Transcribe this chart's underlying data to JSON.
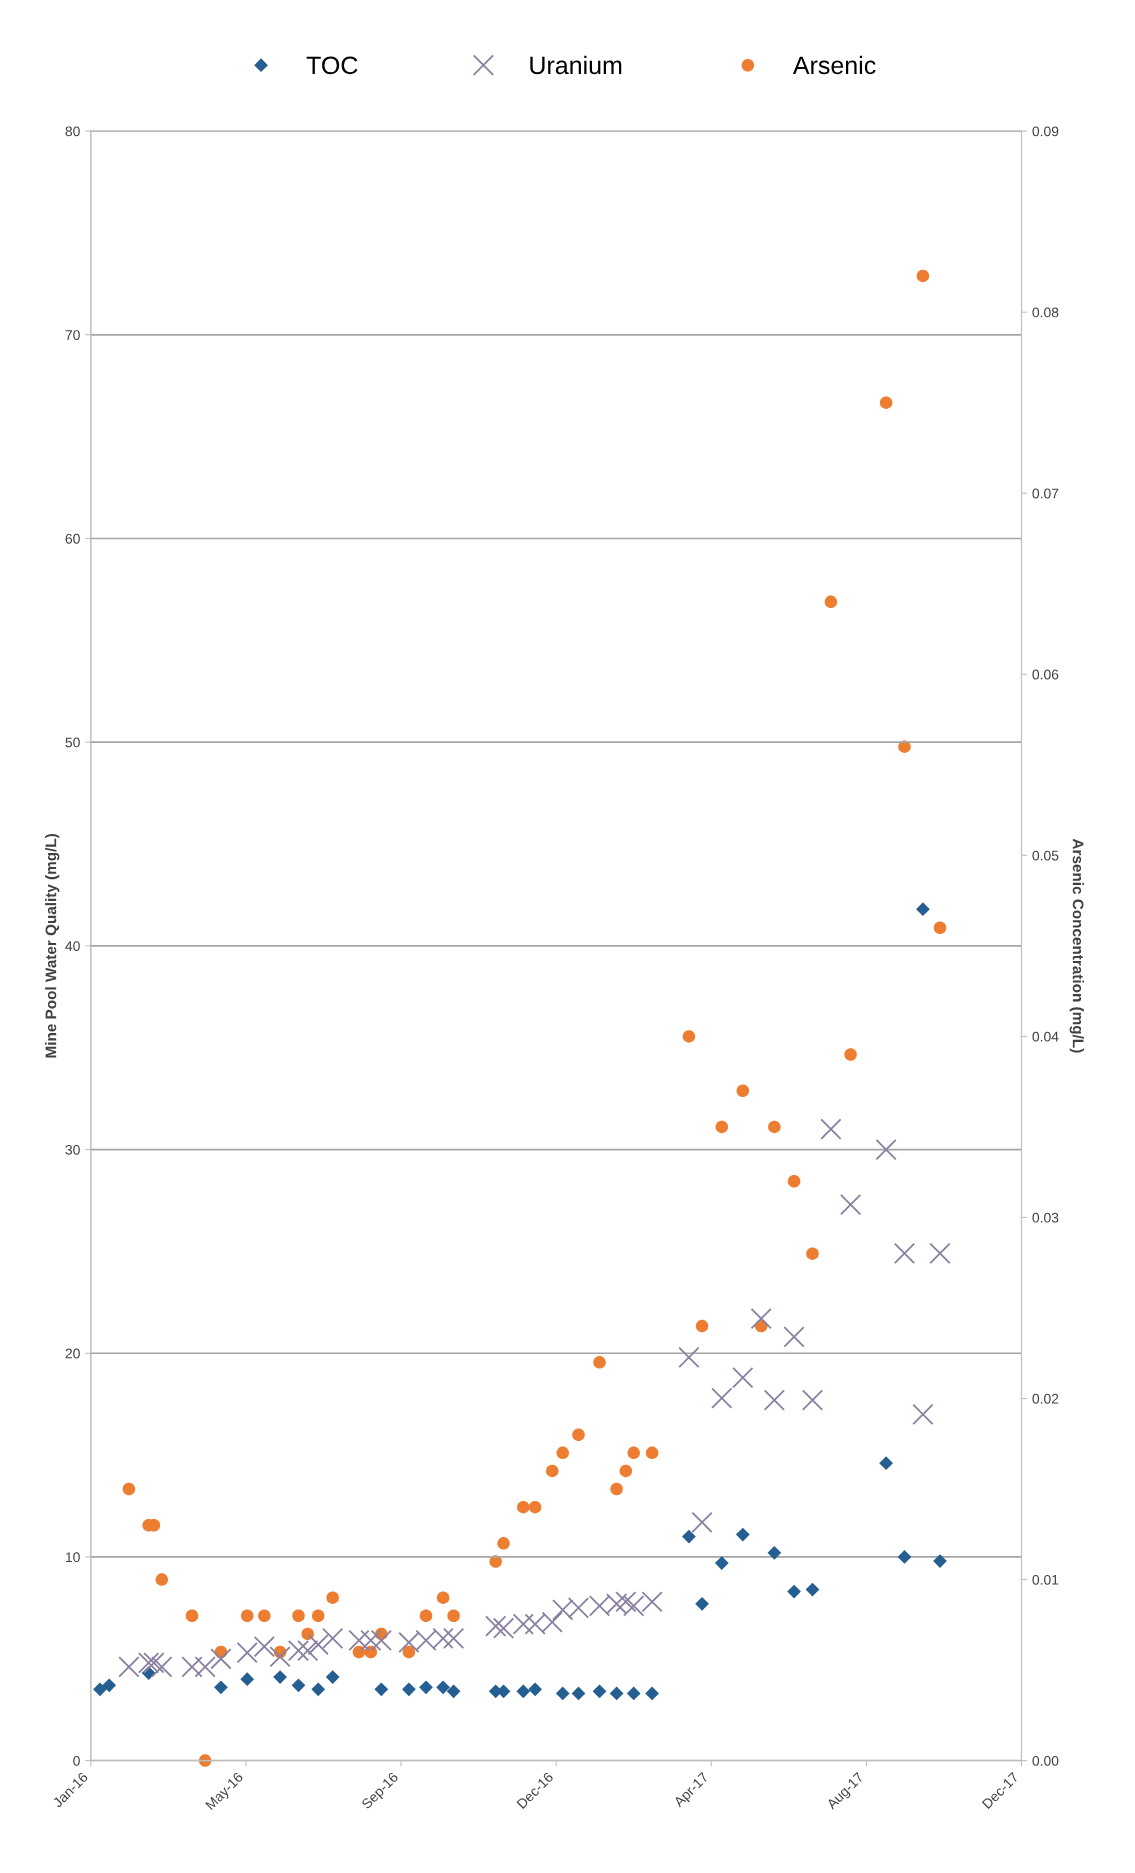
{
  "chart_data": {
    "type": "scatter",
    "ylabel": "Mine Pool Water Quality (mg/L)",
    "y2label": "Arsenic Concentration (mg/L)",
    "xlim": [
      "2016-01-11",
      "2017-12-19"
    ],
    "xticks": [
      {
        "value": "2016-01-11",
        "label": "Jan-16"
      },
      {
        "value": "2016-05-08",
        "label": "May-16"
      },
      {
        "value": "2016-09-03",
        "label": "Sep-16"
      },
      {
        "value": "2016-12-30",
        "label": "Dec-16"
      },
      {
        "value": "2017-04-27",
        "label": "Apr-17"
      },
      {
        "value": "2017-08-23",
        "label": "Aug-17"
      },
      {
        "value": "2017-12-19",
        "label": "Dec-17"
      }
    ],
    "ylim": [
      0,
      80
    ],
    "yticks": [
      0,
      10,
      20,
      30,
      40,
      50,
      60,
      70,
      80
    ],
    "y2lim": [
      0,
      0.09
    ],
    "y2ticks": [
      {
        "value": 0,
        "label": "0.00"
      },
      0.01,
      0.02,
      0.03,
      0.04,
      0.05,
      0.06,
      0.07,
      0.08,
      0.09
    ],
    "grid": "y",
    "legend": "top",
    "series": [
      {
        "name": "TOC",
        "color": "#255e91",
        "marker": "diamond",
        "x": [
          "2016-01-18",
          "2016-01-25",
          "2016-02-24",
          "2016-04-19",
          "2016-05-09",
          "2016-06-03",
          "2016-06-17",
          "2016-07-02",
          "2016-07-13",
          "2016-08-19",
          "2016-09-09",
          "2016-09-22",
          "2016-10-05",
          "2016-10-13",
          "2016-11-14",
          "2016-11-20",
          "2016-12-05",
          "2016-12-14",
          "2017-01-04",
          "2017-01-16",
          "2017-02-01",
          "2017-02-14",
          "2017-02-27",
          "2017-03-13",
          "2017-04-10",
          "2017-04-20",
          "2017-05-05",
          "2017-05-21",
          "2017-06-14",
          "2017-06-29",
          "2017-07-13",
          "2017-09-07",
          "2017-09-21",
          "2017-10-05",
          "2017-10-18"
        ],
        "values": [
          3.5,
          3.7,
          4.3,
          3.6,
          4.0,
          4.1,
          3.7,
          3.5,
          4.1,
          3.5,
          3.5,
          3.6,
          3.6,
          3.4,
          3.4,
          3.4,
          3.4,
          3.5,
          3.3,
          3.3,
          3.4,
          3.3,
          3.3,
          3.3,
          11.0,
          7.7,
          9.7,
          11.1,
          10.2,
          8.3,
          8.4,
          14.6,
          10.0,
          41.8,
          9.8
        ]
      },
      {
        "name": "Uranium",
        "color": "#8a7fa0",
        "marker": "cross",
        "x": [
          "2016-02-09",
          "2016-02-24",
          "2016-02-28",
          "2016-03-05",
          "2016-03-28",
          "2016-04-07",
          "2016-04-19",
          "2016-05-09",
          "2016-05-22",
          "2016-06-03",
          "2016-06-17",
          "2016-06-24",
          "2016-07-02",
          "2016-07-13",
          "2016-08-02",
          "2016-08-11",
          "2016-08-19",
          "2016-09-09",
          "2016-09-22",
          "2016-10-05",
          "2016-10-13",
          "2016-11-14",
          "2016-11-20",
          "2016-12-05",
          "2016-12-14",
          "2016-12-27",
          "2017-01-04",
          "2017-01-16",
          "2017-02-01",
          "2017-02-14",
          "2017-02-21",
          "2017-02-27",
          "2017-03-13",
          "2017-04-10",
          "2017-04-20",
          "2017-05-05",
          "2017-05-21",
          "2017-06-04",
          "2017-06-14",
          "2017-06-29",
          "2017-07-13",
          "2017-07-27",
          "2017-08-11",
          "2017-09-07",
          "2017-09-21",
          "2017-10-05",
          "2017-10-18"
        ],
        "values": [
          4.6,
          4.8,
          4.8,
          4.6,
          4.6,
          4.6,
          5.0,
          5.3,
          5.6,
          5.1,
          5.4,
          5.4,
          5.7,
          6.0,
          5.9,
          5.9,
          5.9,
          5.8,
          5.9,
          6.0,
          6.0,
          6.6,
          6.5,
          6.7,
          6.7,
          6.8,
          7.4,
          7.5,
          7.6,
          7.7,
          7.8,
          7.6,
          7.8,
          19.8,
          11.7,
          17.8,
          18.8,
          21.7,
          17.7,
          20.8,
          17.7,
          31.0,
          27.3,
          30.0,
          24.9,
          17.0,
          24.9
        ]
      },
      {
        "name": "Arsenic",
        "color": "#ed7d31",
        "marker": "circle",
        "axis": "y2",
        "x": [
          "2016-02-09",
          "2016-02-24",
          "2016-02-28",
          "2016-03-05",
          "2016-03-28",
          "2016-04-07",
          "2016-04-19",
          "2016-05-09",
          "2016-05-22",
          "2016-06-03",
          "2016-06-17",
          "2016-06-24",
          "2016-07-02",
          "2016-07-13",
          "2016-08-02",
          "2016-08-11",
          "2016-08-19",
          "2016-09-09",
          "2016-09-22",
          "2016-10-05",
          "2016-10-13",
          "2016-11-14",
          "2016-11-20",
          "2016-12-05",
          "2016-12-14",
          "2016-12-27",
          "2017-01-04",
          "2017-01-16",
          "2017-02-01",
          "2017-02-14",
          "2017-02-21",
          "2017-02-27",
          "2017-03-13",
          "2017-04-10",
          "2017-04-20",
          "2017-05-05",
          "2017-05-21",
          "2017-06-04",
          "2017-06-14",
          "2017-06-29",
          "2017-07-13",
          "2017-07-27",
          "2017-08-11",
          "2017-09-07",
          "2017-09-21",
          "2017-10-05",
          "2017-10-18"
        ],
        "values": [
          0.015,
          0.013,
          0.013,
          0.01,
          0.008,
          0.0,
          0.006,
          0.008,
          0.008,
          0.006,
          0.008,
          0.007,
          0.008,
          0.009,
          0.006,
          0.006,
          0.007,
          0.006,
          0.008,
          0.009,
          0.008,
          0.011,
          0.012,
          0.014,
          0.014,
          0.016,
          0.017,
          0.018,
          0.022,
          0.015,
          0.016,
          0.017,
          0.017,
          0.04,
          0.024,
          0.035,
          0.037,
          0.024,
          0.035,
          0.032,
          0.028,
          0.064,
          0.039,
          0.075,
          0.056,
          0.082,
          0.046
        ]
      }
    ]
  }
}
